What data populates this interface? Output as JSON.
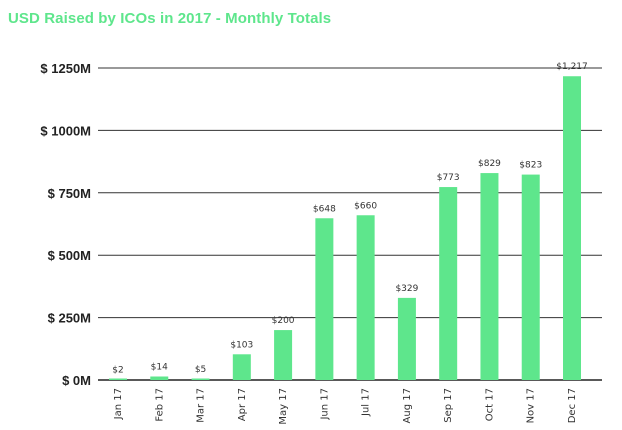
{
  "chart_data": {
    "type": "bar",
    "title": "USD Raised by ICOs in 2017 - Monthly Totals",
    "xlabel": "",
    "ylabel": "",
    "ylim": [
      0,
      1250
    ],
    "categories": [
      "Jan 17",
      "Feb 17",
      "Mar 17",
      "Apr 17",
      "May 17",
      "Jun 17",
      "Jul 17",
      "Aug 17",
      "Sep 17",
      "Oct 17",
      "Nov 17",
      "Dec 17"
    ],
    "values": [
      2,
      14,
      5,
      103,
      200,
      648,
      660,
      329,
      773,
      829,
      823,
      1217
    ],
    "data_labels": [
      "$2",
      "$14",
      "$5",
      "$103",
      "$200",
      "$648",
      "$660",
      "$329",
      "$773",
      "$829",
      "$823",
      "$1,217"
    ],
    "y_ticks": [
      0,
      250,
      500,
      750,
      1000,
      1250
    ],
    "y_tick_labels": [
      "$ 0M",
      "$ 250M",
      "$ 500M",
      "$ 750M",
      "$ 1000M",
      "$ 1250M"
    ],
    "grid": true,
    "legend": "none",
    "colors": {
      "bar": "#5ee68c",
      "title": "#5ee68c",
      "grid": "#333333"
    }
  }
}
